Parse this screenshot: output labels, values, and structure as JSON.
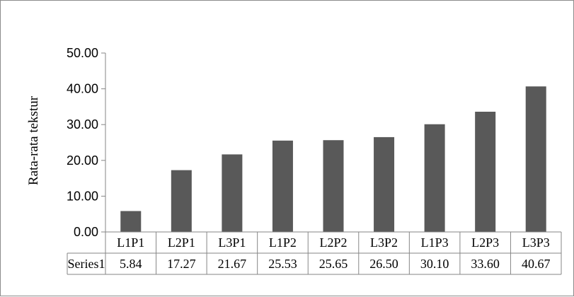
{
  "chart_data": {
    "type": "bar",
    "title": "",
    "xlabel": "",
    "ylabel": "Rata-rata tekstur",
    "ylim": [
      0,
      50
    ],
    "ytick_step": 10,
    "ytick_labels": [
      "0.00",
      "10.00",
      "20.00",
      "30.00",
      "40.00",
      "50.00"
    ],
    "grid": false,
    "legend": "data table below x-axis",
    "bar_color": "#595959",
    "categories": [
      "L1P1",
      "L2P1",
      "L3P1",
      "L1P2",
      "L2P2",
      "L3P2",
      "L1P3",
      "L2P3",
      "L3P3"
    ],
    "series": [
      {
        "name": "Series1",
        "values": [
          5.84,
          17.27,
          21.67,
          25.53,
          25.65,
          26.5,
          30.1,
          33.6,
          40.67
        ],
        "value_labels": [
          "5.84",
          "17.27",
          "21.67",
          "25.53",
          "25.65",
          "26.50",
          "30.10",
          "33.60",
          "40.67"
        ]
      }
    ]
  }
}
